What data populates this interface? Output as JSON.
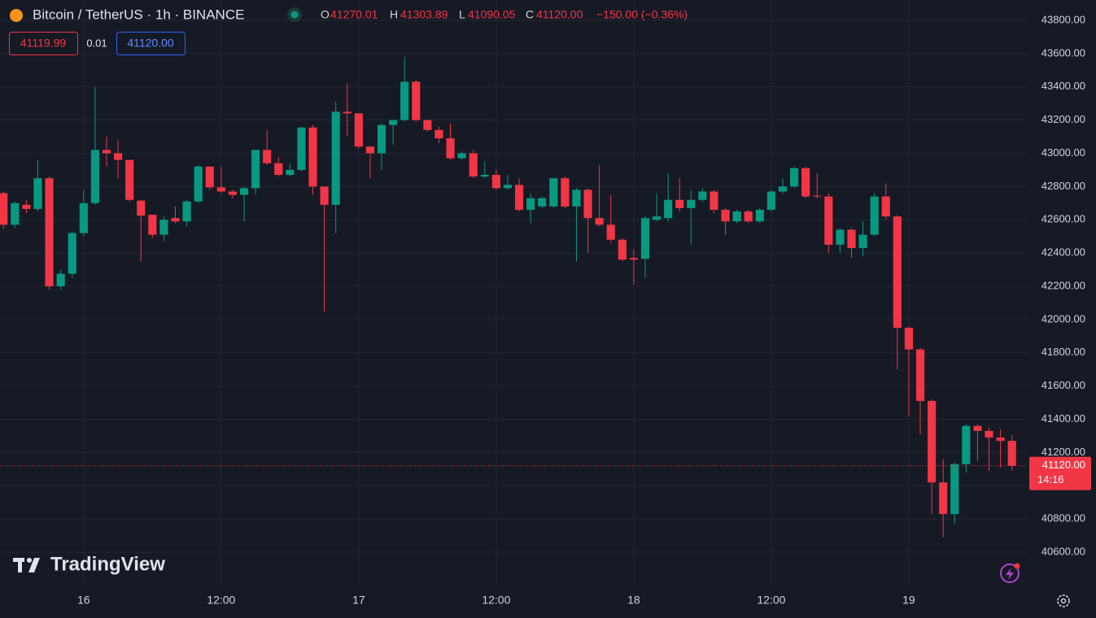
{
  "header": {
    "symbol": "Bitcoin / TetherUS · 1h · BINANCE",
    "open_key": "O",
    "open": "41270.01",
    "high_key": "H",
    "high": "41303.89",
    "low_key": "L",
    "low": "41090.05",
    "close_key": "C",
    "close": "41120.00",
    "change": "−150.00 (−0.36%)",
    "bid": "41119.99",
    "spread": "0.01",
    "ask": "41120.00",
    "brand": "TradingView"
  },
  "chart_data": {
    "type": "candlestick",
    "up_color": "#089981",
    "down_color": "#f23645",
    "grid": true,
    "xlim": [
      -0.3,
      89.3
    ],
    "xticks": [
      {
        "value": 7,
        "label": "16"
      },
      {
        "value": 19,
        "label": "12:00"
      },
      {
        "value": 31,
        "label": "17"
      },
      {
        "value": 43,
        "label": "12:00"
      },
      {
        "value": 55,
        "label": "18"
      },
      {
        "value": 67,
        "label": "12:00"
      },
      {
        "value": 79,
        "label": "19"
      }
    ],
    "ylim": [
      40400,
      43922
    ],
    "yticks": [
      {
        "value": 40600,
        "label": "40600.00"
      },
      {
        "value": 40800,
        "label": "40800.00"
      },
      {
        "value": 41000,
        "label": "41000.00"
      },
      {
        "value": 41200,
        "label": "41200.00"
      },
      {
        "value": 41400,
        "label": "41400.00"
      },
      {
        "value": 41600,
        "label": "41600.00"
      },
      {
        "value": 41800,
        "label": "41800.00"
      },
      {
        "value": 42000,
        "label": "42000.00"
      },
      {
        "value": 42200,
        "label": "42200.00"
      },
      {
        "value": 42400,
        "label": "42400.00"
      },
      {
        "value": 42600,
        "label": "42600.00"
      },
      {
        "value": 42800,
        "label": "42800.00"
      },
      {
        "value": 43000,
        "label": "43000.00"
      },
      {
        "value": 43200,
        "label": "43200.00"
      },
      {
        "value": 43400,
        "label": "43400.00"
      },
      {
        "value": 43600,
        "label": "43600.00"
      },
      {
        "value": 43800,
        "label": "43800.00"
      }
    ],
    "price_line": {
      "value": 41120,
      "label": "41120.00",
      "countdown": "14:16"
    },
    "open": [
      42760,
      42570,
      42690,
      42665,
      42850,
      42200,
      42275,
      42520,
      42700,
      43020,
      43000,
      42960,
      42715,
      42630,
      42510,
      42610,
      42590,
      42710,
      42920,
      42795,
      42770,
      42750,
      42790,
      43020,
      42940,
      42870,
      42900,
      43155,
      42800,
      42690,
      43250,
      43240,
      43040,
      43000,
      43170,
      43200,
      43430,
      43200,
      43140,
      43090,
      42970,
      43000,
      42860,
      42870,
      42790,
      42810,
      42660,
      42680,
      42680,
      42850,
      42680,
      42780,
      42610,
      42570,
      42480,
      42370,
      42365,
      42600,
      42610,
      42720,
      42670,
      42720,
      42770,
      42660,
      42590,
      42650,
      42590,
      42660,
      42770,
      42800,
      42910,
      42745,
      42740,
      42450,
      42540,
      42430,
      42510,
      42740,
      42620,
      41950,
      41820,
      41510,
      41020,
      40830,
      41130,
      41360,
      41330,
      41290,
      41270.01
    ],
    "high": [
      42770,
      42710,
      42720,
      42960,
      42860,
      42300,
      42530,
      42780,
      43400,
      43100,
      43080,
      42960,
      42720,
      42630,
      42620,
      42680,
      42720,
      42930,
      42920,
      42920,
      42780,
      42800,
      43020,
      43140,
      42980,
      42940,
      43160,
      43170,
      42800,
      43310,
      43420,
      43240,
      43040,
      43180,
      43200,
      43580,
      43440,
      43200,
      43160,
      43180,
      43010,
      43020,
      42950,
      42900,
      42870,
      42850,
      42760,
      42740,
      42850,
      42860,
      42790,
      42790,
      42930,
      42750,
      42490,
      42420,
      42620,
      42760,
      42880,
      42850,
      42780,
      42790,
      42780,
      42670,
      42660,
      42660,
      42670,
      42780,
      42850,
      42920,
      42920,
      42880,
      42760,
      42550,
      42550,
      42590,
      42760,
      42820,
      42630,
      41960,
      41830,
      41520,
      41160,
      41140,
      41370,
      41370,
      41350,
      41340,
      41303.89
    ],
    "low": [
      42545,
      42550,
      42640,
      42650,
      42180,
      42180,
      42250,
      42500,
      42690,
      42920,
      42850,
      42710,
      42350,
      42490,
      42470,
      42580,
      42560,
      42700,
      42780,
      42760,
      42730,
      42590,
      42750,
      42930,
      42860,
      42860,
      42890,
      42750,
      42050,
      42520,
      43100,
      43030,
      42850,
      42900,
      43050,
      43190,
      43190,
      43130,
      43060,
      42960,
      42960,
      42850,
      42850,
      42780,
      42780,
      42650,
      42580,
      42670,
      42670,
      42670,
      42350,
      42400,
      42560,
      42460,
      42350,
      42210,
      42250,
      42590,
      42590,
      42650,
      42450,
      42710,
      42640,
      42510,
      42580,
      42580,
      42580,
      42650,
      42760,
      42790,
      42730,
      42730,
      42400,
      42400,
      42370,
      42380,
      42500,
      42600,
      41700,
      41420,
      41310,
      40830,
      40690,
      40770,
      41080,
      41150,
      41090,
      41110,
      41090.05
    ],
    "close": [
      42570,
      42700,
      42665,
      42850,
      42200,
      42275,
      42520,
      42700,
      43020,
      43000,
      42960,
      42720,
      42625,
      42510,
      42600,
      42590,
      42710,
      42920,
      42795,
      42770,
      42750,
      42790,
      43020,
      42940,
      42870,
      42900,
      43155,
      42800,
      42690,
      43250,
      43240,
      43040,
      43000,
      43170,
      43200,
      43430,
      43200,
      43140,
      43090,
      42970,
      43000,
      42860,
      42870,
      42790,
      42810,
      42660,
      42730,
      42730,
      42850,
      42680,
      42780,
      42610,
      42570,
      42480,
      42360,
      42360,
      42610,
      42620,
      42720,
      42670,
      42720,
      42770,
      42660,
      42590,
      42650,
      42590,
      42660,
      42770,
      42800,
      42910,
      42740,
      42740,
      42450,
      42540,
      42430,
      42510,
      42740,
      42620,
      41950,
      41820,
      41510,
      41020,
      40830,
      41130,
      41360,
      41330,
      41290,
      41270,
      41120
    ]
  }
}
